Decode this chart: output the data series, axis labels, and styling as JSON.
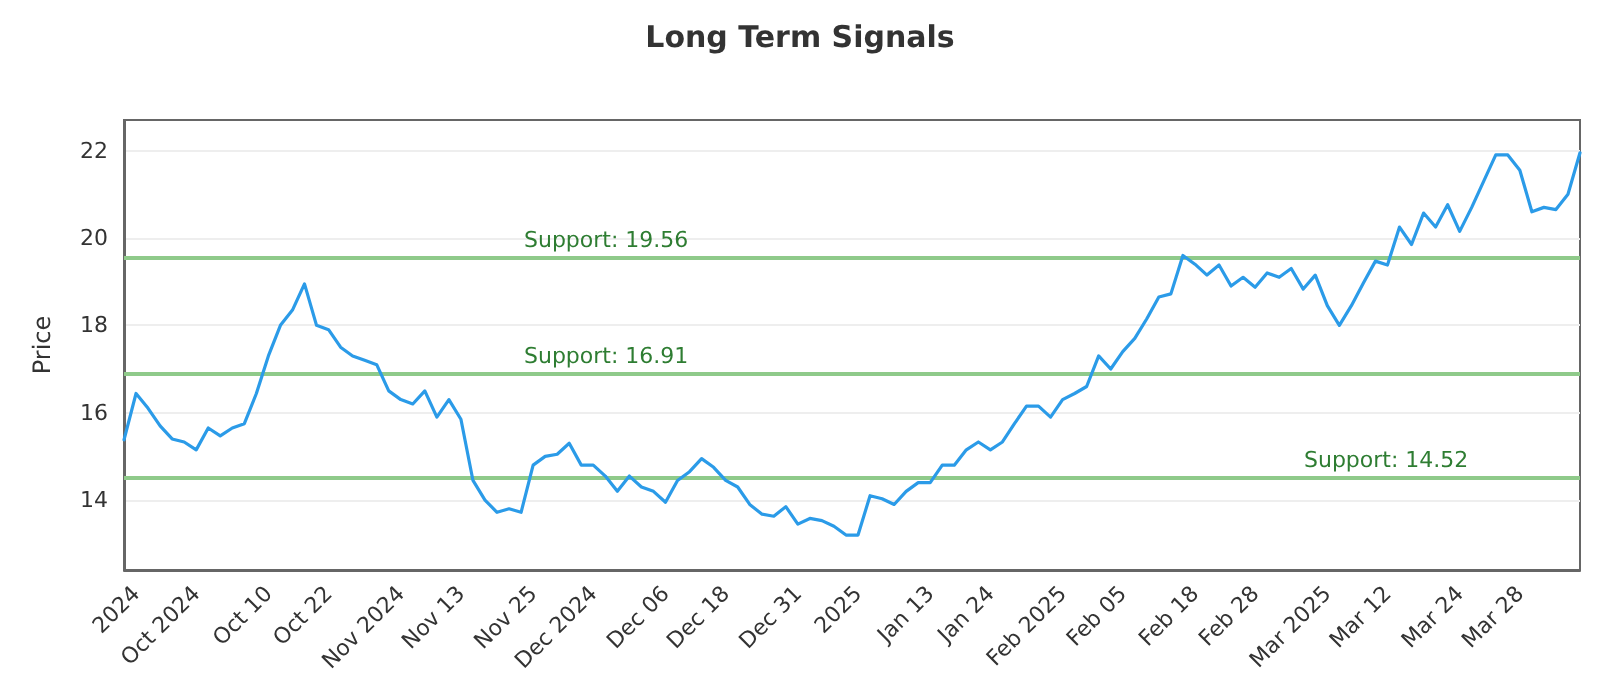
{
  "chart_data": {
    "type": "line",
    "title": "Long Term Signals",
    "ylabel": "Price",
    "categories": [
      null,
      "2024",
      null,
      null,
      null,
      null,
      "Oct 2024",
      null,
      null,
      null,
      null,
      null,
      "Oct 10",
      null,
      null,
      null,
      null,
      "Oct 22",
      null,
      null,
      null,
      null,
      null,
      "Nov 2024",
      null,
      null,
      null,
      null,
      "Nov 13",
      null,
      null,
      null,
      null,
      null,
      "Nov 25",
      null,
      null,
      null,
      null,
      "Dec 2024",
      null,
      null,
      null,
      null,
      null,
      "Dec 06",
      null,
      null,
      null,
      null,
      "Dec 18",
      null,
      null,
      null,
      null,
      null,
      "Dec 31",
      null,
      null,
      null,
      null,
      "2025",
      null,
      null,
      null,
      null,
      null,
      "Jan 13",
      null,
      null,
      null,
      null,
      "Jan 24",
      null,
      null,
      null,
      null,
      null,
      "Feb 2025",
      null,
      null,
      null,
      null,
      "Feb 05",
      null,
      null,
      null,
      null,
      null,
      "Feb 18",
      null,
      null,
      null,
      null,
      "Feb 28",
      null,
      null,
      null,
      null,
      null,
      "Mar 2025",
      null,
      null,
      null,
      null,
      "Mar 12",
      null,
      null,
      null,
      null,
      null,
      "Mar 24",
      null,
      null,
      null,
      null,
      "Mar 28",
      null,
      null,
      null,
      null,
      null
    ],
    "series": [
      {
        "color": "#2b9be8",
        "values": [
          15.38,
          16.44,
          16.1,
          15.7,
          15.4,
          15.33,
          15.15,
          15.65,
          15.47,
          15.65,
          15.75,
          16.44,
          17.3,
          18.0,
          18.35,
          18.95,
          18.0,
          17.9,
          17.5,
          17.3,
          17.2,
          17.1,
          16.5,
          16.3,
          16.2,
          16.5,
          15.9,
          16.3,
          15.85,
          14.45,
          14.0,
          13.72,
          13.8,
          13.72,
          14.8,
          15.0,
          15.05,
          15.3,
          14.8,
          14.8,
          14.55,
          14.2,
          14.55,
          14.3,
          14.2,
          13.95,
          14.45,
          14.65,
          14.95,
          14.75,
          14.45,
          14.3,
          13.9,
          13.68,
          13.63,
          13.85,
          13.45,
          13.58,
          13.53,
          13.4,
          13.2,
          13.2,
          14.1,
          14.03,
          13.9,
          14.2,
          14.4,
          14.4,
          14.8,
          14.8,
          15.15,
          15.33,
          15.15,
          15.33,
          15.75,
          16.15,
          16.15,
          15.9,
          16.3,
          16.44,
          16.6,
          17.3,
          17.0,
          17.4,
          17.7,
          18.15,
          18.65,
          18.72,
          19.6,
          19.4,
          19.15,
          19.38,
          18.9,
          19.1,
          18.87,
          19.2,
          19.1,
          19.3,
          18.83,
          19.15,
          18.45,
          18.0,
          18.45,
          18.97,
          19.47,
          19.38,
          20.25,
          19.85,
          20.57,
          20.25,
          20.76,
          20.15,
          20.7,
          21.3,
          21.9,
          21.9,
          21.55,
          20.6,
          20.7,
          20.65,
          21.0,
          21.95
        ]
      }
    ],
    "ylim": [
      12.4,
      22.7
    ],
    "yticks": [
      14,
      16,
      18,
      20,
      22
    ],
    "grid": "y",
    "marker": "none",
    "line_style": "solid",
    "ref_lines": [
      {
        "axis": "y",
        "value": 19.56,
        "label": "Support: 19.56",
        "color": "#8fca8a"
      },
      {
        "axis": "y",
        "value": 16.91,
        "label": "Support: 16.91",
        "color": "#8fca8a"
      },
      {
        "axis": "y",
        "value": 14.52,
        "label": "Support: 14.52",
        "color": "#8fca8a"
      }
    ]
  }
}
